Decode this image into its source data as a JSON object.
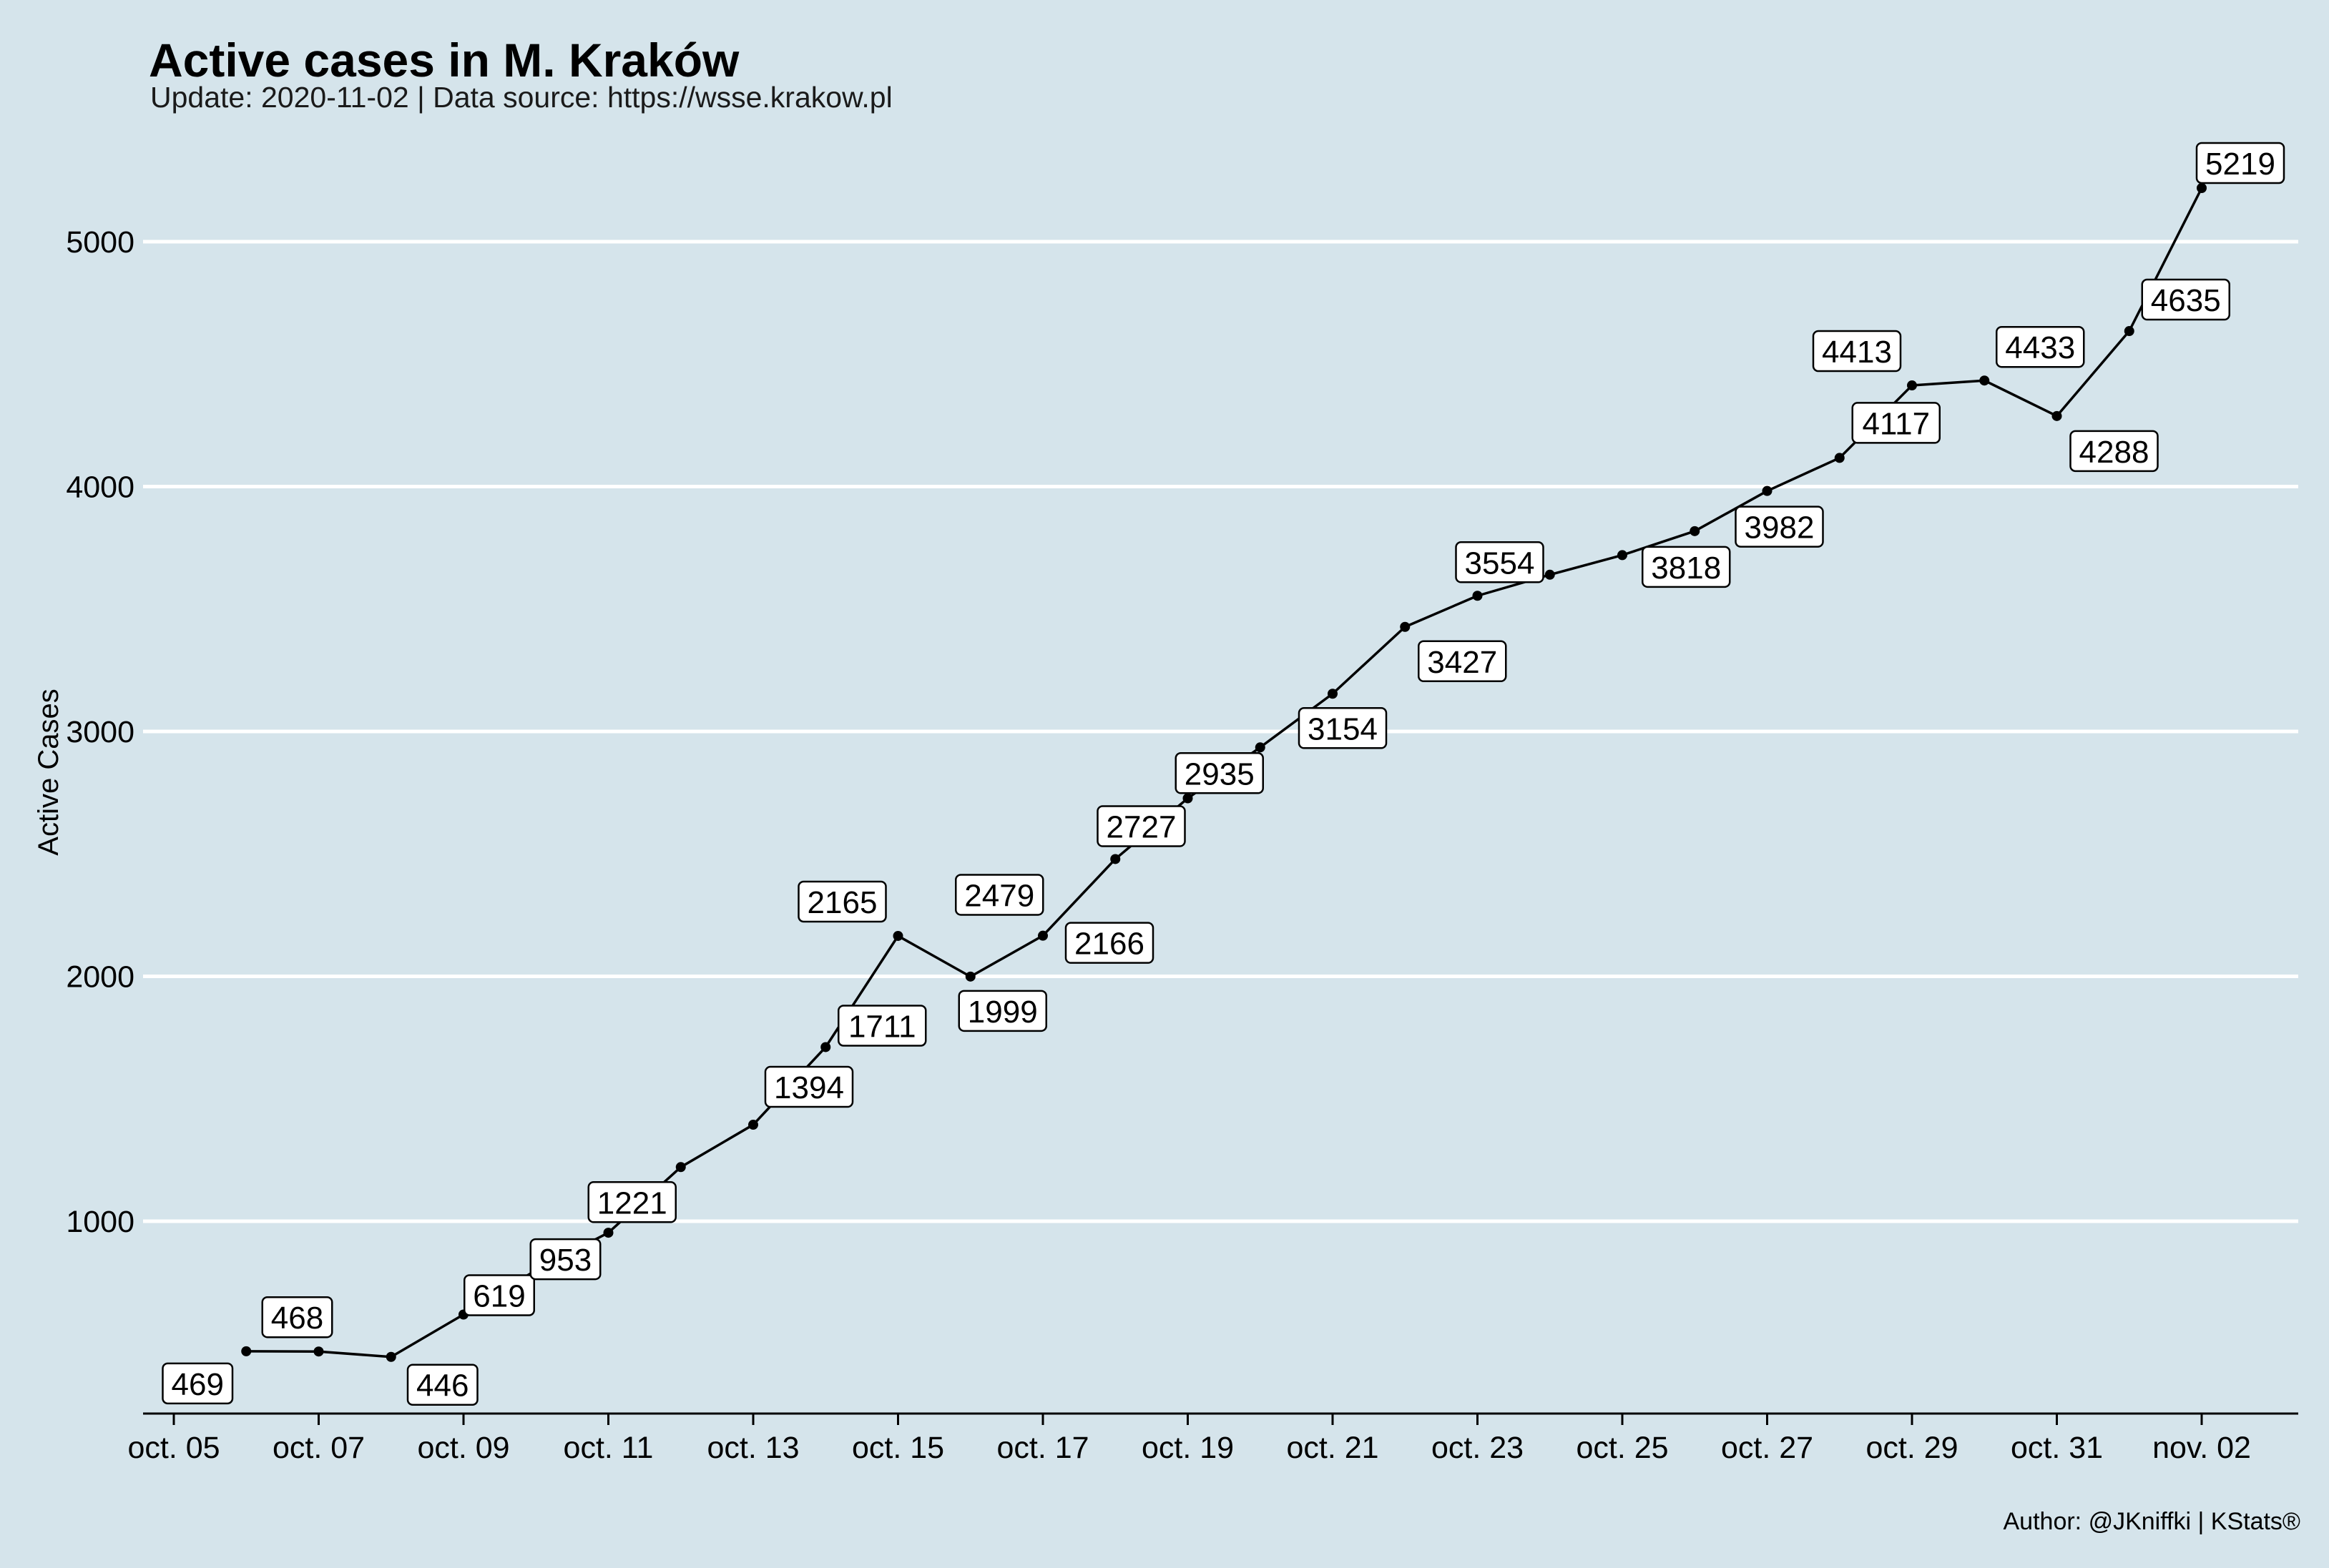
{
  "chart_data": {
    "type": "line",
    "title": "Active cases in M. Kraków",
    "subtitle": "Update: 2020-11-02 | Data source: https://wsse.krakow.pl",
    "ylabel": "Active Cases",
    "xlabel": "",
    "caption": "Author: @JKniffki | KStats®",
    "x_tick_labels": [
      "oct. 05",
      "oct. 07",
      "oct. 09",
      "oct. 11",
      "oct. 13",
      "oct. 15",
      "oct. 17",
      "oct. 19",
      "oct. 21",
      "oct. 23",
      "oct. 25",
      "oct. 27",
      "oct. 29",
      "oct. 31",
      "nov. 02"
    ],
    "y_ticks": [
      1000,
      2000,
      3000,
      4000,
      5000
    ],
    "grid": "horizontal",
    "series": [
      {
        "x": [
          "2020-10-06",
          "2020-10-07",
          "2020-10-08",
          "2020-10-09",
          "2020-10-10",
          "2020-10-11",
          "2020-10-12",
          "2020-10-13",
          "2020-10-14",
          "2020-10-15",
          "2020-10-16",
          "2020-10-17",
          "2020-10-18",
          "2020-10-19",
          "2020-10-20",
          "2020-10-21",
          "2020-10-22",
          "2020-10-23",
          "2020-10-24",
          "2020-10-25",
          "2020-10-26",
          "2020-10-27",
          "2020-10-28",
          "2020-10-29",
          "2020-10-30",
          "2020-10-31",
          "2020-11-01",
          "2020-11-02"
        ],
        "values": [
          469,
          468,
          446,
          619,
          800,
          953,
          1221,
          1394,
          1711,
          2165,
          1999,
          2166,
          2479,
          2727,
          2935,
          3154,
          3427,
          3554,
          3640,
          3720,
          3818,
          3982,
          4117,
          4413,
          4433,
          4288,
          4635,
          5219
        ]
      }
    ],
    "data_labels": [
      {
        "date": "2020-10-06",
        "text": "469"
      },
      {
        "date": "2020-10-07",
        "text": "468"
      },
      {
        "date": "2020-10-08",
        "text": "446"
      },
      {
        "date": "2020-10-09",
        "text": "619"
      },
      {
        "date": "2020-10-11",
        "text": "953"
      },
      {
        "date": "2020-10-12",
        "text": "1221"
      },
      {
        "date": "2020-10-13",
        "text": "1394"
      },
      {
        "date": "2020-10-14",
        "text": "1711"
      },
      {
        "date": "2020-10-15",
        "text": "2165"
      },
      {
        "date": "2020-10-16",
        "text": "1999"
      },
      {
        "date": "2020-10-17",
        "text": "2166"
      },
      {
        "date": "2020-10-18",
        "text": "2479"
      },
      {
        "date": "2020-10-19",
        "text": "2727"
      },
      {
        "date": "2020-10-20",
        "text": "2935"
      },
      {
        "date": "2020-10-21",
        "text": "3154"
      },
      {
        "date": "2020-10-22",
        "text": "3427"
      },
      {
        "date": "2020-10-23",
        "text": "3554"
      },
      {
        "date": "2020-10-26",
        "text": "3818"
      },
      {
        "date": "2020-10-27",
        "text": "3982"
      },
      {
        "date": "2020-10-28",
        "text": "4117"
      },
      {
        "date": "2020-10-29",
        "text": "4413"
      },
      {
        "date": "2020-10-30",
        "text": "4433"
      },
      {
        "date": "2020-10-31",
        "text": "4288"
      },
      {
        "date": "2020-11-01",
        "text": "4635"
      },
      {
        "date": "2020-11-02",
        "text": "5219"
      }
    ],
    "colors": {
      "background": "#d5e4eb",
      "grid": "#ffffff",
      "line": "#000000",
      "label_fill": "#ffffff"
    }
  }
}
